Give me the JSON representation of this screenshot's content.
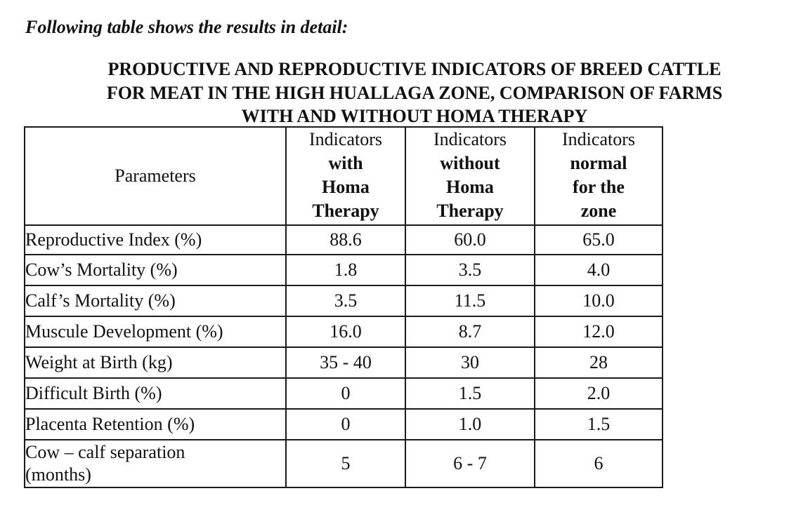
{
  "intro": "Following table shows the results in detail:",
  "title_lines": [
    "PRODUCTIVE AND REPRODUCTIVE INDICATORS OF BREED CATTLE",
    "FOR MEAT IN THE HIGH HUALLAGA ZONE, COMPARISON OF FARMS",
    "WITH AND WITHOUT HOMA THERAPY"
  ],
  "table": {
    "headers": {
      "parameters": "Parameters",
      "with": [
        "Indicators",
        "with",
        "Homa",
        "Therapy"
      ],
      "without": [
        "Indicators",
        "without",
        "Homa",
        "Therapy"
      ],
      "normal": [
        "Indicators",
        "normal",
        "for the",
        "zone"
      ]
    },
    "rows": [
      {
        "parameter": "Reproductive Index (%)",
        "with": "88.6",
        "without": "60.0",
        "normal": "65.0"
      },
      {
        "parameter": "Cow’s Mortality (%)",
        "with": "1.8",
        "without": "3.5",
        "normal": "4.0"
      },
      {
        "parameter": "Calf’s Mortality (%)",
        "with": "3.5",
        "without": "11.5",
        "normal": "10.0"
      },
      {
        "parameter": "Muscule Development (%)",
        "with": "16.0",
        "without": "8.7",
        "normal": "12.0"
      },
      {
        "parameter": "Weight at Birth (kg)",
        "with": "35 - 40",
        "without": "30",
        "normal": "28"
      },
      {
        "parameter": "Difficult Birth (%)",
        "with": "0",
        "without": "1.5",
        "normal": "2.0"
      },
      {
        "parameter": "Placenta Retention (%)",
        "with": "0",
        "without": "1.0",
        "normal": "1.5"
      },
      {
        "parameter_lines": [
          "Cow – calf separation",
          "(months)"
        ],
        "with": "5",
        "without": "6 - 7",
        "normal": "6"
      }
    ]
  }
}
